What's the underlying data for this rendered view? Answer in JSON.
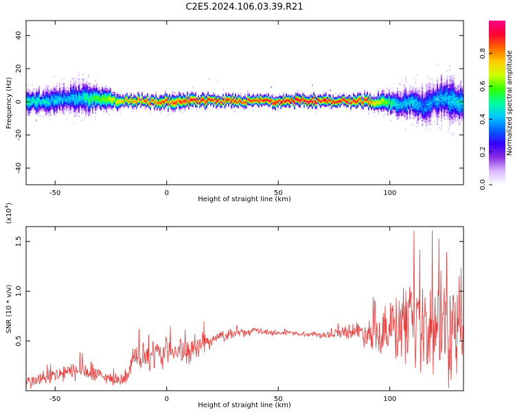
{
  "title": "C2E5.2024.106.03.39.R21",
  "colorbar": {
    "label": "Normalized spectral amplitude",
    "ticks": [
      "0.0",
      "0.2",
      "0.4",
      "0.6",
      "0.8"
    ],
    "tick_values": [
      0.0,
      0.2,
      0.4,
      0.6,
      0.8
    ],
    "range": [
      0,
      1
    ],
    "colormap": [
      "#ffffff",
      "#d9b8ff",
      "#8a2be2",
      "#3300ff",
      "#0066ff",
      "#00ccff",
      "#00ff99",
      "#33ff00",
      "#ccff00",
      "#ffcc00",
      "#ff6600",
      "#ff0033",
      "#ff0088"
    ]
  },
  "chart_data": [
    {
      "type": "heatmap",
      "xlabel": "Height of straight line (km)",
      "ylabel": "Frequency (Hz)",
      "xlim": [
        -63,
        133
      ],
      "ylim": [
        -50,
        49
      ],
      "xticks": [
        "-50",
        "0",
        "50",
        "100"
      ],
      "xtick_values": [
        -50,
        0,
        50,
        100
      ],
      "yticks": [
        "-40",
        "-20",
        "0",
        "20",
        "40"
      ],
      "ytick_values": [
        -40,
        -20,
        0,
        20,
        40
      ],
      "ridge": {
        "x": [
          -63,
          -55,
          -45,
          -38,
          -30,
          -20,
          -10,
          0,
          10,
          20,
          30,
          40,
          50,
          60,
          70,
          80,
          90,
          98,
          105,
          110,
          115,
          120,
          125,
          130,
          133
        ],
        "center_freq": [
          0,
          0.5,
          1.5,
          2.5,
          1.5,
          0.5,
          0.2,
          0,
          0.5,
          0.8,
          0.5,
          0.3,
          0.5,
          0.8,
          0.2,
          0.6,
          0.3,
          0,
          -2,
          0,
          -3,
          1,
          2,
          0,
          -1
        ],
        "halfwidth_freq": [
          5,
          5,
          6,
          7,
          5,
          3,
          2.5,
          3,
          3,
          2.5,
          2.5,
          2.5,
          2.5,
          2.5,
          2.5,
          2.5,
          3,
          4,
          6,
          6,
          8,
          8,
          9,
          8,
          7
        ],
        "peak_amplitude": [
          0.5,
          0.45,
          0.4,
          0.45,
          0.6,
          0.75,
          0.85,
          0.85,
          0.9,
          0.9,
          0.88,
          0.88,
          0.92,
          0.95,
          0.92,
          0.9,
          0.85,
          0.6,
          0.4,
          0.45,
          0.35,
          0.4,
          0.4,
          0.45,
          0.45
        ]
      }
    },
    {
      "type": "line",
      "xlabel": "Height of straight line (km)",
      "ylabel": "SNR (10 * v/v)",
      "y_multiplier": "(x10",
      "y_multiplier_exp": "4",
      "y_multiplier_close": ")",
      "xlim": [
        -63,
        133
      ],
      "ylim": [
        0,
        16500
      ],
      "xticks": [
        "-50",
        "0",
        "50",
        "100"
      ],
      "xtick_values": [
        -50,
        0,
        50,
        100
      ],
      "yticks": [
        "0.5",
        "1.0",
        "1.5"
      ],
      "ytick_values": [
        5000,
        10000,
        15000
      ],
      "color": "#ee3333",
      "series": [
        {
          "x": [
            -63,
            -55,
            -50,
            -45,
            -40,
            -35,
            -30,
            -25,
            -20,
            -17,
            -15,
            -12,
            -10,
            -8,
            -5,
            -2,
            0,
            3,
            6,
            10,
            15,
            20,
            25,
            30,
            35,
            40,
            45,
            50,
            55,
            60,
            65,
            70,
            75,
            80,
            85,
            90,
            95,
            100,
            105,
            110,
            115,
            120,
            125,
            130,
            133
          ],
          "y": [
            800,
            1200,
            1500,
            1800,
            2000,
            1800,
            1500,
            1200,
            1000,
            1500,
            3500,
            3000,
            3200,
            3000,
            3800,
            3500,
            4000,
            4200,
            4000,
            3600,
            4600,
            5000,
            5500,
            5800,
            5800,
            6000,
            5900,
            5800,
            5800,
            5700,
            5700,
            5600,
            5700,
            6000,
            6000,
            5800,
            6000,
            6200,
            6000,
            6000,
            5800,
            6000,
            6000,
            6000,
            6000
          ],
          "spread": [
            800,
            900,
            1000,
            1100,
            1200,
            1100,
            900,
            700,
            500,
            800,
            1500,
            1500,
            1400,
            1600,
            1800,
            1600,
            1700,
            1500,
            1500,
            1600,
            1200,
            900,
            700,
            500,
            500,
            400,
            350,
            300,
            300,
            250,
            300,
            400,
            500,
            800,
            1200,
            1800,
            2500,
            3500,
            4500,
            5000,
            5500,
            6000,
            6500,
            6000,
            5500
          ]
        }
      ]
    }
  ]
}
